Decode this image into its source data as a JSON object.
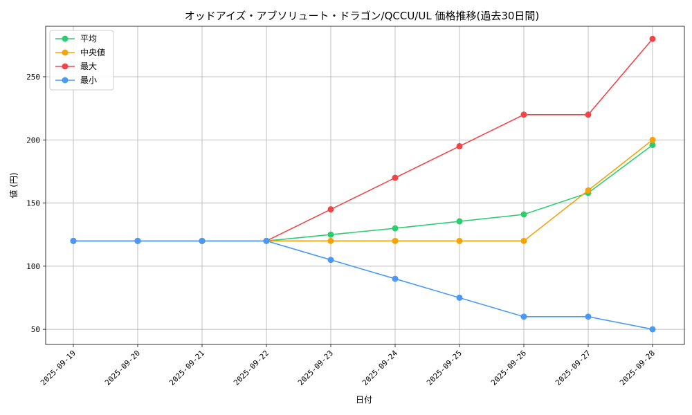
{
  "chart_data": {
    "type": "line",
    "title": "オッドアイズ・アブソリュート・ドラゴン/QCCU/UL 価格推移(過去30日間)",
    "xlabel": "日付",
    "ylabel": "値 (円)",
    "categories": [
      "2025-09-19",
      "2025-09-20",
      "2025-09-21",
      "2025-09-22",
      "2025-09-23",
      "2025-09-24",
      "2025-09-25",
      "2025-09-26",
      "2025-09-27",
      "2025-09-28"
    ],
    "ylim": [
      38,
      290
    ],
    "yticks": [
      50,
      100,
      150,
      200,
      250
    ],
    "grid": true,
    "legend_position": "top-left",
    "series": [
      {
        "name": "平均",
        "color": "#2ecc71",
        "values": [
          120,
          120,
          120,
          120,
          125,
          130,
          135.5,
          141,
          158,
          196
        ]
      },
      {
        "name": "中央値",
        "color": "#f5a30a",
        "values": [
          120,
          120,
          120,
          120,
          120,
          120,
          120,
          120,
          160,
          200
        ]
      },
      {
        "name": "最大",
        "color": "#f0464a",
        "values": [
          120,
          120,
          120,
          120,
          145,
          170,
          195,
          220,
          220,
          280
        ]
      },
      {
        "name": "最小",
        "color": "#4a9af5",
        "values": [
          120,
          120,
          120,
          120,
          105,
          90,
          75,
          60,
          60,
          50
        ]
      }
    ]
  }
}
